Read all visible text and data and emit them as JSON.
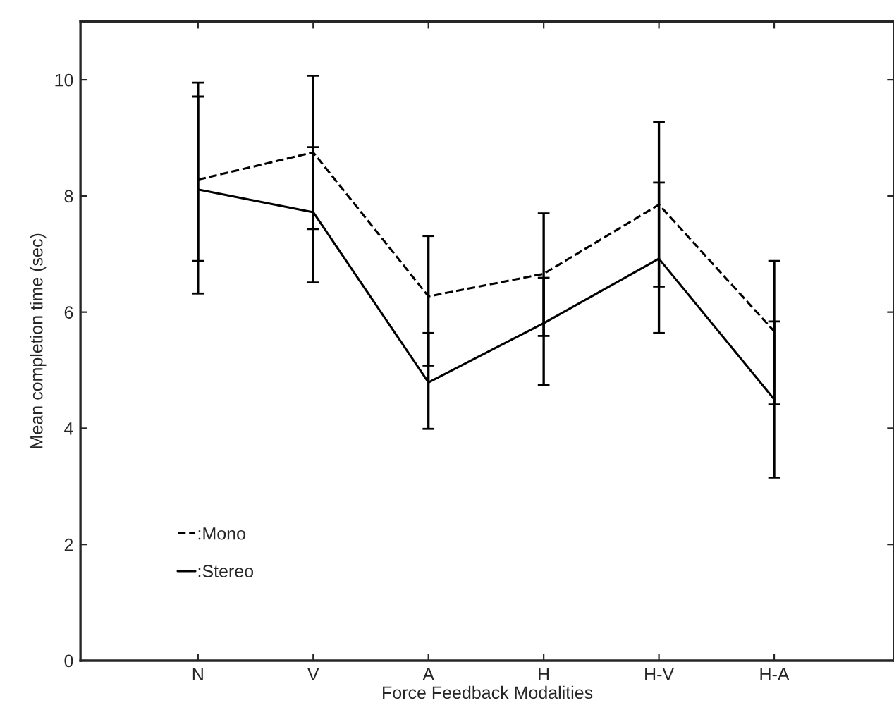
{
  "chart_data": {
    "type": "line",
    "xlabel": "Force Feedback Modalities",
    "ylabel": "Mean completion time (sec)",
    "categories": [
      "N",
      "V",
      "A",
      "H",
      "H-V",
      "H-A"
    ],
    "series": [
      {
        "name": ":Mono",
        "color": "#000000",
        "line_style": "dashed",
        "values": [
          8.28,
          8.75,
          6.27,
          6.66,
          7.85,
          5.67
        ],
        "errors": [
          [
            6.88,
            9.71
          ],
          [
            7.43,
            10.07
          ],
          [
            5.08,
            7.31
          ],
          [
            5.59,
            7.7
          ],
          [
            6.44,
            9.27
          ],
          [
            4.41,
            6.88
          ]
        ]
      },
      {
        "name": ":Stereo",
        "color": "#000000",
        "line_style": "solid",
        "values": [
          8.11,
          7.72,
          4.79,
          5.81,
          6.92,
          4.5
        ],
        "errors": [
          [
            6.32,
            9.95
          ],
          [
            6.51,
            8.84
          ],
          [
            3.99,
            5.64
          ],
          [
            4.75,
            6.59
          ],
          [
            5.64,
            8.23
          ],
          [
            3.15,
            5.84
          ]
        ]
      }
    ],
    "ylim": [
      0,
      11
    ],
    "yticks": [
      0,
      2,
      4,
      6,
      8,
      10
    ],
    "legend": "bottom left",
    "grid": false
  }
}
